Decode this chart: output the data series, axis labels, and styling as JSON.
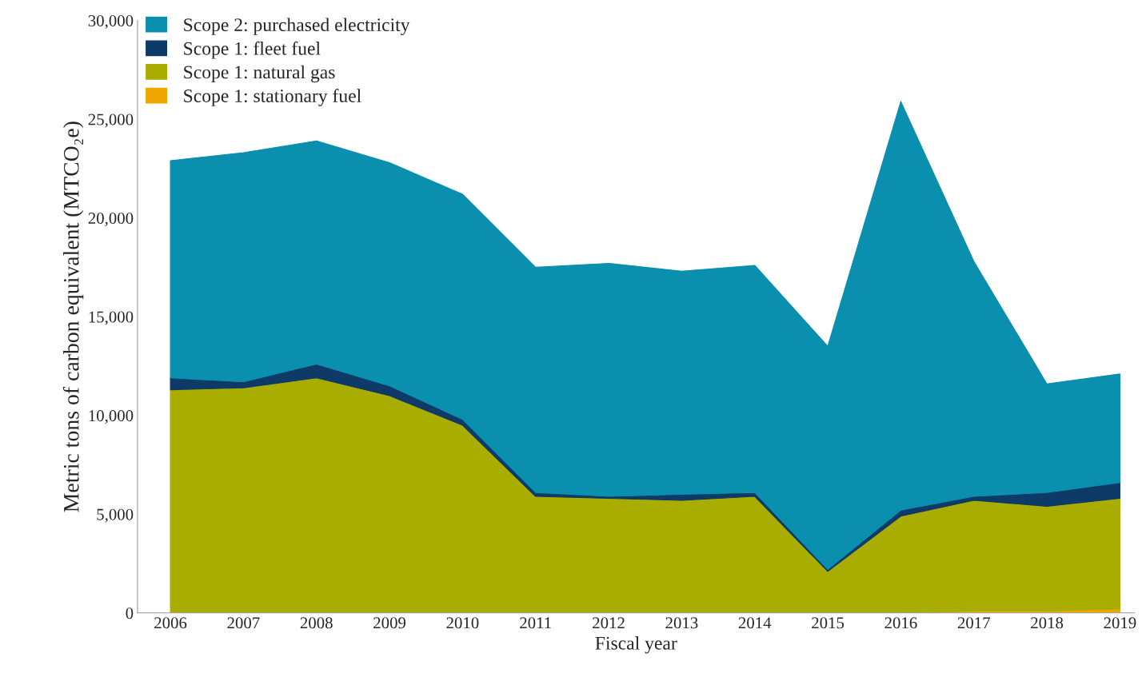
{
  "chart_data": {
    "type": "area",
    "stacked": true,
    "xlabel": "Fiscal year",
    "ylabel": "Metric tons of carbon equivalent (MTCO₂e)",
    "categories": [
      "2006",
      "2007",
      "2008",
      "2009",
      "2010",
      "2011",
      "2012",
      "2013",
      "2014",
      "2015",
      "2016",
      "2017",
      "2018",
      "2019"
    ],
    "series": [
      {
        "name": "Scope 1: stationary fuel",
        "color": "#f0a800",
        "values": [
          0,
          0,
          0,
          0,
          0,
          0,
          0,
          0,
          0,
          0,
          0,
          100,
          100,
          200
        ]
      },
      {
        "name": "Scope 1: natural gas",
        "color": "#a8ad00",
        "values": [
          11300,
          11400,
          11900,
          11000,
          9500,
          5900,
          5800,
          5700,
          5900,
          2100,
          4900,
          5600,
          5300,
          5600
        ]
      },
      {
        "name": "Scope 1: fleet fuel",
        "color": "#0d3a66",
        "values": [
          600,
          300,
          700,
          500,
          300,
          200,
          100,
          300,
          200,
          100,
          300,
          200,
          700,
          800
        ]
      },
      {
        "name": "Scope 2: purchased electricity",
        "color": "#0a8fae",
        "values": [
          11000,
          11600,
          11300,
          11300,
          11400,
          11400,
          11800,
          11300,
          11500,
          11300,
          20700,
          11900,
          5500,
          5500
        ]
      }
    ],
    "ylim": [
      0,
      30000
    ],
    "yticks": [
      0,
      {
        "value": 5000,
        "label": "5,000"
      },
      {
        "value": 10000,
        "label": "10,000"
      },
      {
        "value": 15000,
        "label": "15,000"
      },
      {
        "value": 20000,
        "label": "20,000"
      },
      {
        "value": 25000,
        "label": "25,000"
      },
      {
        "value": 30000,
        "label": "30,000"
      }
    ],
    "grid": false,
    "legend": "top left"
  }
}
